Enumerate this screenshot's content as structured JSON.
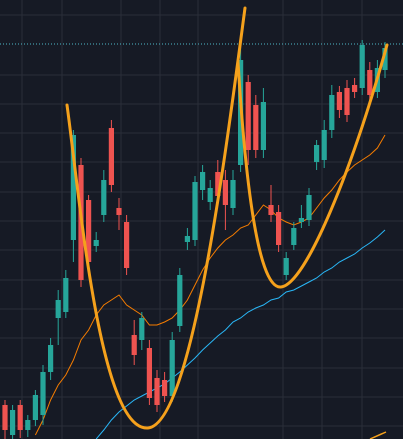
{
  "chart_data": {
    "type": "candlestick",
    "ylim": [
      0,
      439
    ],
    "up_color": "#26a69a",
    "down_color": "#ef5350",
    "open": [
      34,
      4,
      34,
      9,
      19,
      24,
      67,
      121,
      127,
      199,
      274,
      239,
      193,
      224,
      311,
      231,
      217,
      104,
      99,
      91,
      61,
      59,
      43,
      113,
      197,
      199,
      249,
      237,
      267,
      259,
      231,
      274,
      357,
      334,
      289,
      234,
      227,
      164,
      194,
      217,
      219,
      277,
      279,
      309,
      347,
      351,
      354,
      351,
      369,
      347,
      369
    ],
    "close": [
      9,
      29,
      9,
      19,
      44,
      67,
      94,
      139,
      161,
      304,
      159,
      177,
      199,
      259,
      254,
      224,
      171,
      84,
      121,
      41,
      34,
      43,
      99,
      164,
      203,
      257,
      267,
      251,
      243,
      234,
      259,
      379,
      289,
      289,
      337,
      224,
      194,
      181,
      211,
      221,
      244,
      294,
      309,
      344,
      329,
      324,
      347,
      394,
      344,
      371,
      391
    ],
    "high": [
      39,
      34,
      39,
      24,
      49,
      74,
      101,
      149,
      169,
      309,
      281,
      244,
      207,
      269,
      319,
      241,
      224,
      119,
      127,
      99,
      69,
      67,
      107,
      171,
      211,
      263,
      274,
      259,
      279,
      269,
      269,
      394,
      364,
      344,
      351,
      254,
      234,
      187,
      217,
      234,
      251,
      299,
      319,
      354,
      353,
      359,
      361,
      399,
      377,
      379,
      397
    ],
    "low": [
      0,
      0,
      1,
      2,
      13,
      14,
      59,
      94,
      121,
      177,
      152,
      171,
      187,
      217,
      247,
      209,
      164,
      74,
      89,
      34,
      27,
      37,
      37,
      107,
      189,
      193,
      239,
      229,
      234,
      209,
      224,
      267,
      274,
      281,
      281,
      217,
      187,
      159,
      189,
      211,
      213,
      269,
      271,
      301,
      321,
      317,
      341,
      344,
      337,
      341,
      361
    ],
    "series": [
      {
        "color": "#f57c00",
        "values": [
          null,
          null,
          null,
          null,
          4,
          19,
          39,
          54,
          64,
          79,
          99,
          109,
          124,
          134,
          139,
          144,
          134,
          129,
          124,
          114,
          114,
          117,
          121,
          129,
          139,
          154,
          169,
          181,
          191,
          199,
          204,
          211,
          214,
          224,
          234,
          229,
          221,
          217,
          214,
          217,
          221,
          231,
          241,
          249,
          259,
          267,
          274,
          279,
          284,
          291,
          304
        ]
      },
      {
        "color": "#29b6f6",
        "values": [
          null,
          null,
          null,
          null,
          null,
          null,
          null,
          null,
          null,
          null,
          null,
          null,
          0,
          9,
          19,
          27,
          33,
          39,
          43,
          47,
          51,
          55,
          61,
          67,
          74,
          81,
          89,
          96,
          103,
          109,
          117,
          121,
          127,
          131,
          134,
          139,
          141,
          147,
          149,
          153,
          157,
          161,
          167,
          171,
          177,
          181,
          185,
          191,
          196,
          202,
          209
        ]
      }
    ]
  }
}
